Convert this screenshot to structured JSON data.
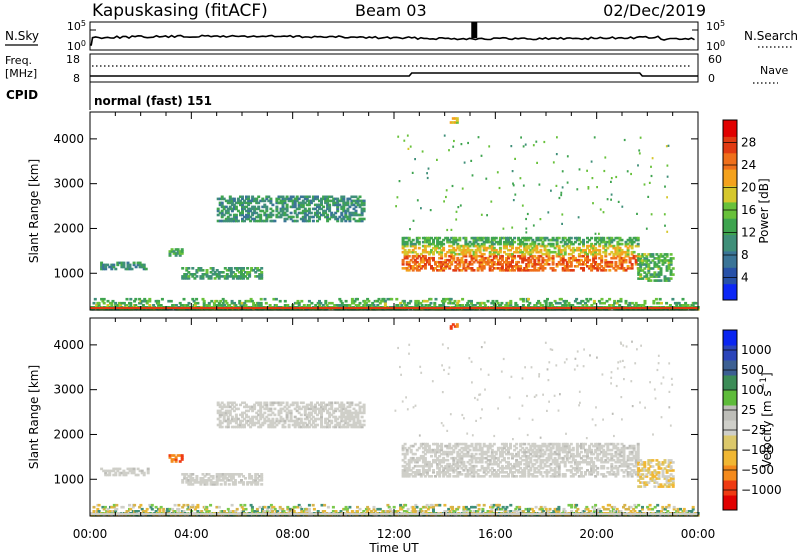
{
  "header": {
    "station": "Kapuskasing (fitACF)",
    "beam": "Beam 03",
    "date": "02/Dec/2019"
  },
  "top_panel": {
    "left_label": "N.Sky",
    "right_label": "N.Search",
    "left_ticks": [
      "10^5",
      "10^0"
    ],
    "right_ticks": [
      "10^5",
      "10^0"
    ]
  },
  "freq_panel": {
    "left_label_1": "Freq.",
    "left_label_2": "[MHz]",
    "left_ticks": [
      "18",
      "8"
    ],
    "right_label": "Nave",
    "right_ticks": [
      "60",
      "0"
    ]
  },
  "cpid_panel": {
    "label": "CPID",
    "mode": "normal (fast) 151"
  },
  "colors": {
    "power_scale": [
      "#0c27f5",
      "#2751a8",
      "#3a7497",
      "#3f8f79",
      "#3ea44f",
      "#68c13a",
      "#d6c72c",
      "#f4a21d",
      "#ef6f1a",
      "#e13a12",
      "#e00000"
    ],
    "velocity_scale": [
      "#e00000",
      "#ef3a12",
      "#f48a1c",
      "#f1b733",
      "#dcc86b",
      "#cfcfc9",
      "#bdbdb8",
      "#5ebb3a",
      "#3c8c57",
      "#3c5f92",
      "#2b44b9",
      "#0a25f0"
    ]
  },
  "chart_data": [
    {
      "type": "heatmap",
      "name": "power",
      "ylabel": "Slant Range [km]",
      "xlabel": "",
      "xlim": [
        "00:00",
        "00:00"
      ],
      "x_ticks": [
        "00:00",
        "04:00",
        "08:00",
        "12:00",
        "16:00",
        "20:00",
        "00:00"
      ],
      "ylim": [
        180,
        4600
      ],
      "y_ticks": [
        1000,
        2000,
        3000,
        4000
      ],
      "colorbar": {
        "label": "Power [dB]",
        "range": [
          0,
          32
        ],
        "ticks": [
          4,
          8,
          12,
          16,
          20,
          24,
          28
        ]
      },
      "echo_regions": [
        {
          "t_start": 0.4,
          "t_end": 2.3,
          "r_start": 1080,
          "r_end": 1240,
          "power_db": 10
        },
        {
          "t_start": 3.1,
          "t_end": 3.6,
          "r_start": 1380,
          "r_end": 1520,
          "power_db": 12
        },
        {
          "t_start": 3.6,
          "t_end": 6.8,
          "r_start": 870,
          "r_end": 1100,
          "power_db": 12
        },
        {
          "t_start": 5.0,
          "t_end": 10.8,
          "r_start": 2150,
          "r_end": 2700,
          "power_db": 10
        },
        {
          "t_start": 12.3,
          "t_end": 21.6,
          "r_start": 1050,
          "r_end": 1800,
          "power_db": 20
        },
        {
          "t_start": 21.6,
          "t_end": 23.0,
          "r_start": 820,
          "r_end": 1450,
          "power_db": 14
        },
        {
          "t_start": 0.0,
          "t_end": 24.0,
          "r_start": 180,
          "r_end": 420,
          "power_db": 14
        },
        {
          "t_start": 14.2,
          "t_end": 14.5,
          "r_start": 4350,
          "r_end": 4480,
          "power_db": 20
        }
      ]
    },
    {
      "type": "heatmap",
      "name": "velocity",
      "xlabel": "Time UT",
      "ylabel": "Slant Range [km]",
      "xlim": [
        "00:00",
        "00:00"
      ],
      "x_ticks": [
        "00:00",
        "04:00",
        "08:00",
        "12:00",
        "16:00",
        "20:00",
        "00:00"
      ],
      "ylim": [
        180,
        4600
      ],
      "y_ticks": [
        1000,
        2000,
        3000,
        4000
      ],
      "colorbar": {
        "label": "Velocity [m s^-1]",
        "ticks": [
          "1000",
          "500",
          "100",
          "25",
          "-25",
          "-100",
          "-500",
          "-1000"
        ]
      },
      "echo_regions": [
        {
          "t_start": 0.4,
          "t_end": 2.3,
          "r_start": 1080,
          "r_end": 1240,
          "velocity": 0
        },
        {
          "t_start": 3.1,
          "t_end": 3.6,
          "r_start": 1380,
          "r_end": 1520,
          "velocity": -400
        },
        {
          "t_start": 3.6,
          "t_end": 6.8,
          "r_start": 870,
          "r_end": 1100,
          "velocity": 0
        },
        {
          "t_start": 5.0,
          "t_end": 10.8,
          "r_start": 2150,
          "r_end": 2700,
          "velocity": 0
        },
        {
          "t_start": 12.3,
          "t_end": 21.6,
          "r_start": 1050,
          "r_end": 1800,
          "velocity": 0
        },
        {
          "t_start": 21.6,
          "t_end": 23.0,
          "r_start": 820,
          "r_end": 1450,
          "velocity": -60
        },
        {
          "t_start": 0.0,
          "t_end": 24.0,
          "r_start": 180,
          "r_end": 420,
          "velocity": 60
        },
        {
          "t_start": 14.2,
          "t_end": 14.5,
          "r_start": 4350,
          "r_end": 4480,
          "velocity": -600
        }
      ]
    }
  ]
}
